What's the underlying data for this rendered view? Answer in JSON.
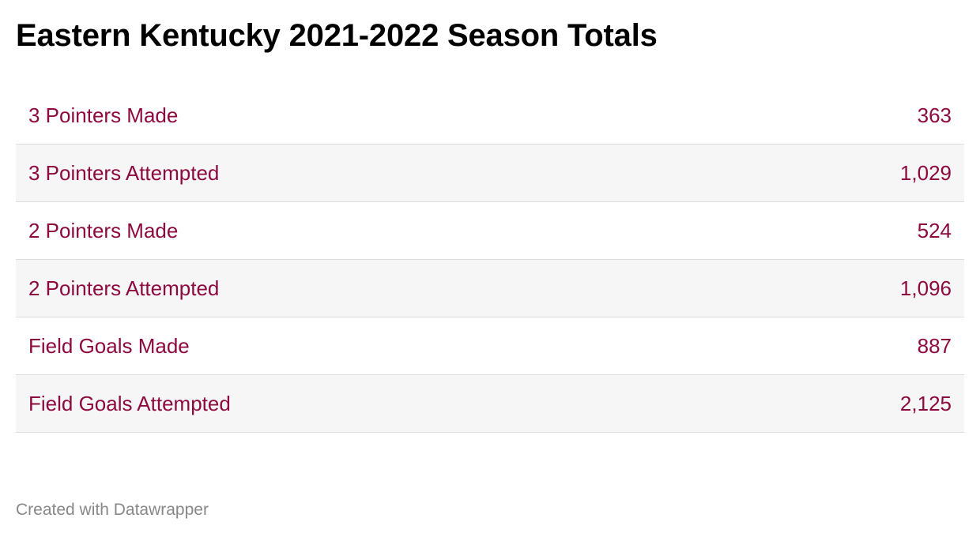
{
  "chart_data": {
    "type": "table",
    "title": "Eastern Kentucky 2021-2022 Season Totals",
    "rows": [
      {
        "label": "3 Pointers Made",
        "value": "363"
      },
      {
        "label": "3 Pointers Attempted",
        "value": "1,029"
      },
      {
        "label": "2 Pointers Made",
        "value": "524"
      },
      {
        "label": "2 Pointers Attempted",
        "value": "1,096"
      },
      {
        "label": "Field Goals Made",
        "value": "887"
      },
      {
        "label": "Field Goals Attempted",
        "value": "2,125"
      }
    ],
    "text_color": "#8c0a3f",
    "alt_row_color": "#f6f6f6"
  },
  "footer": {
    "credit": "Created with Datawrapper"
  }
}
